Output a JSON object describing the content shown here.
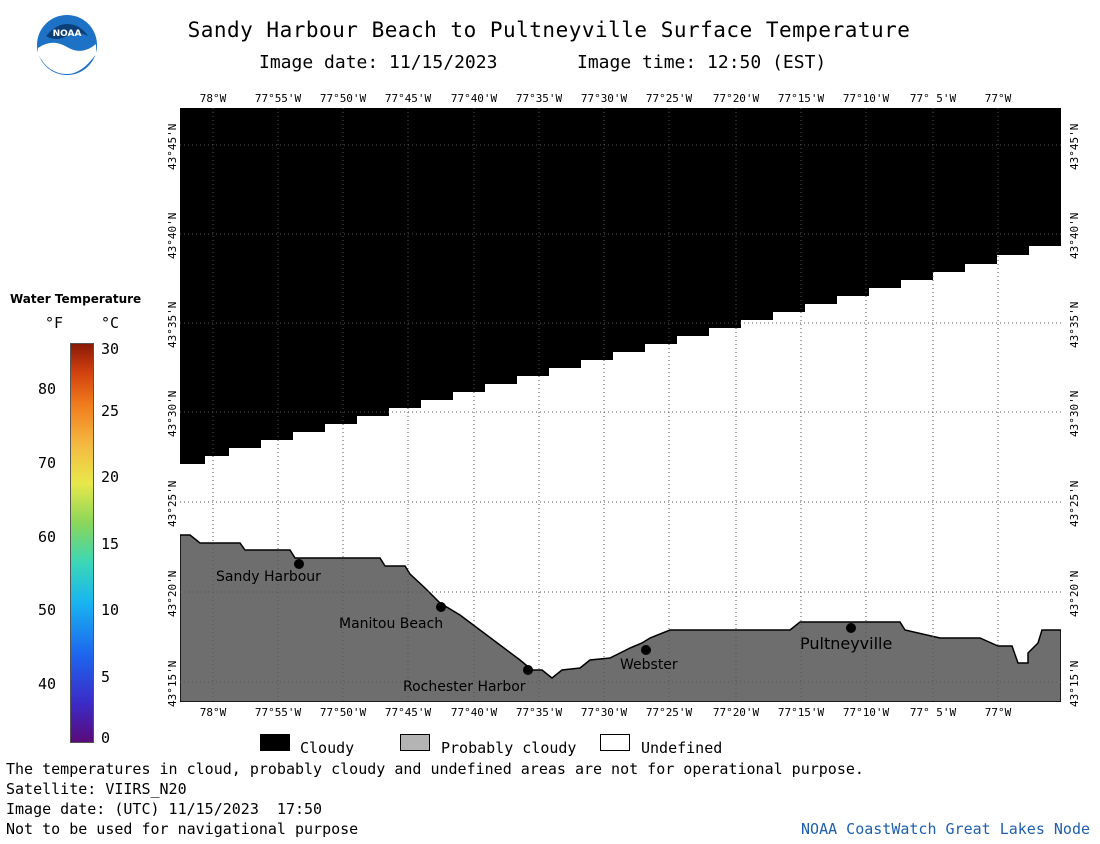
{
  "title": "Sandy Harbour Beach to Pultneyville Surface Temperature",
  "image_date_label": "Image date: 11/15/2023",
  "image_time_label": "Image time: 12:50 (EST)",
  "logo_text": "NOAA",
  "lon_ticks": [
    "78°W",
    "77°55'W",
    "77°50'W",
    "77°45'W",
    "77°40'W",
    "77°35'W",
    "77°30'W",
    "77°25'W",
    "77°20'W",
    "77°15'W",
    "77°10'W",
    "77° 5'W",
    "77°W"
  ],
  "lat_ticks": [
    "43°45'N",
    "43°40'N",
    "43°35'N",
    "43°30'N",
    "43°25'N",
    "43°20'N",
    "43°15'N"
  ],
  "legend": {
    "title": "Water Temperature",
    "unit_f": "°F",
    "unit_c": "°C",
    "f_ticks": [
      "80",
      "70",
      "60",
      "50",
      "40"
    ],
    "c_ticks": [
      "30",
      "25",
      "20",
      "15",
      "10",
      "5",
      "0"
    ]
  },
  "places": [
    {
      "name": "Sandy Harbour"
    },
    {
      "name": "Manitou Beach"
    },
    {
      "name": "Rochester Harbor"
    },
    {
      "name": "Webster"
    },
    {
      "name": "Pultneyville"
    }
  ],
  "categories": {
    "cloudy": "Cloudy",
    "probably_cloudy": "Probably cloudy",
    "undefined": "Undefined"
  },
  "colors": {
    "cloudy": "#000000",
    "probably_cloudy": "#b4b4b4",
    "undefined": "#ffffff",
    "land": "#6e6e6e",
    "credit": "#1f5fae"
  },
  "footer": {
    "disclaimer": "The temperatures in cloud, probably cloudy and undefined areas are not for operational purpose.",
    "satellite": "Satellite: VIIRS_N20",
    "utc_date": "Image date: (UTC) 11/15/2023  17:50",
    "nav_warning": "Not to be used for navigational purpose",
    "credit": "NOAA CoastWatch Great Lakes Node"
  }
}
